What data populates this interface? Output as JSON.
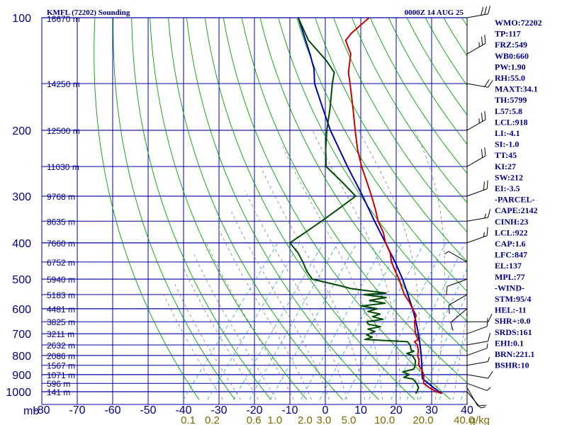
{
  "chart_data": {
    "type": "line",
    "title": "KMFL (72202) Sounding",
    "timestamp": "0000Z 14 AUG 25",
    "y_axis_label": "mb",
    "pressure_ticks": [
      "100",
      "200",
      "300",
      "400",
      "500",
      "600",
      "700",
      "800",
      "900",
      "1000"
    ],
    "temperature_ticks": [
      "-80",
      "-70",
      "-60",
      "-50",
      "-40",
      "-30",
      "-20",
      "-10",
      "0",
      "10",
      "20",
      "30",
      "40"
    ],
    "mixing_ratio_labels": [
      "0.1",
      "0.2",
      "0.6",
      "1.0",
      "2.0",
      "3.0",
      "5.0",
      "10.0",
      "20.0",
      "40.0",
      "g/kg"
    ],
    "height_labels": [
      {
        "p": 100,
        "text": "16670 m"
      },
      {
        "p": 150,
        "text": "14250 m"
      },
      {
        "p": 200,
        "text": "12500 m"
      },
      {
        "p": 250,
        "text": "11030 m"
      },
      {
        "p": 300,
        "text": "9768 m"
      },
      {
        "p": 350,
        "text": "8635 m"
      },
      {
        "p": 400,
        "text": "7660 m"
      },
      {
        "p": 450,
        "text": "6752 m"
      },
      {
        "p": 500,
        "text": "5940 m"
      },
      {
        "p": 550,
        "text": "5183 m"
      },
      {
        "p": 600,
        "text": "4481 m"
      },
      {
        "p": 650,
        "text": "3825 m"
      },
      {
        "p": 700,
        "text": "3211 m"
      },
      {
        "p": 750,
        "text": "2632 m"
      },
      {
        "p": 800,
        "text": "2086 m"
      },
      {
        "p": 850,
        "text": "1567 m"
      },
      {
        "p": 900,
        "text": "1071 m"
      },
      {
        "p": 950,
        "text": "596 m"
      },
      {
        "p": 1000,
        "text": "141 m"
      }
    ],
    "indices": [
      "WMO:72202",
      "TP:117",
      "FRZ:549",
      "WB0:660",
      "PW:1.90",
      "RH:55.0",
      "MAXT:34.1",
      "TH:5799",
      "L57:5.8",
      "LCL:918",
      "LI:-4.1",
      "SI:-1.0",
      "TT:45",
      "KI:27",
      "SW:212",
      "EI:-3.5",
      "-PARCEL-",
      "CAPE:2142",
      "CINH:23",
      "LCL:922",
      "CAP:1.6",
      "LFC:847",
      "EL:137",
      "MPL:77",
      "-WIND-",
      "STM:95/4",
      "HEL:-11",
      "SHR+:0.0",
      "SRDS:161",
      "EHI:0.1",
      "BRN:221.1",
      "BSHR:10"
    ],
    "series": [
      {
        "name": "Temperature",
        "color": "#cc0000",
        "points": [
          [
            1012,
            30.5
          ],
          [
            1000,
            28.5
          ],
          [
            975,
            25.5
          ],
          [
            950,
            23.0
          ],
          [
            925,
            22.0
          ],
          [
            900,
            21.0
          ],
          [
            875,
            19.5
          ],
          [
            850,
            17.5
          ],
          [
            825,
            16.5
          ],
          [
            800,
            15.0
          ],
          [
            775,
            14.0
          ],
          [
            750,
            12.5
          ],
          [
            735,
            11.0
          ],
          [
            725,
            11.5
          ],
          [
            700,
            9.5
          ],
          [
            675,
            8.0
          ],
          [
            650,
            6.5
          ],
          [
            625,
            5.5
          ],
          [
            600,
            3.0
          ],
          [
            575,
            0.5
          ],
          [
            550,
            -2.5
          ],
          [
            525,
            -5.0
          ],
          [
            500,
            -7.5
          ],
          [
            475,
            -10.5
          ],
          [
            450,
            -13.5
          ],
          [
            425,
            -16.0
          ],
          [
            400,
            -19.5
          ],
          [
            375,
            -22.5
          ],
          [
            350,
            -26.5
          ],
          [
            325,
            -30.0
          ],
          [
            300,
            -34.0
          ],
          [
            275,
            -38.5
          ],
          [
            250,
            -43.5
          ],
          [
            225,
            -48.5
          ],
          [
            200,
            -53.5
          ],
          [
            175,
            -59.0
          ],
          [
            150,
            -65.5
          ],
          [
            140,
            -68.5
          ],
          [
            125,
            -72.0
          ],
          [
            115,
            -76.5
          ],
          [
            110,
            -76.5
          ],
          [
            100,
            -75.0
          ]
        ]
      },
      {
        "name": "Dewpoint",
        "color": "#004a00",
        "points": [
          [
            1012,
            23.0
          ],
          [
            1000,
            23.0
          ],
          [
            975,
            22.5
          ],
          [
            950,
            21.0
          ],
          [
            925,
            19.0
          ],
          [
            915,
            16.0
          ],
          [
            900,
            17.0
          ],
          [
            885,
            14.5
          ],
          [
            870,
            17.0
          ],
          [
            850,
            16.5
          ],
          [
            825,
            15.5
          ],
          [
            800,
            13.5
          ],
          [
            790,
            11.5
          ],
          [
            780,
            13.0
          ],
          [
            775,
            12.0
          ],
          [
            750,
            10.5
          ],
          [
            735,
            9.0
          ],
          [
            725,
            -3.5
          ],
          [
            715,
            -2.0
          ],
          [
            705,
            -4.0
          ],
          [
            690,
            -2.5
          ],
          [
            680,
            -5.0
          ],
          [
            670,
            -2.0
          ],
          [
            660,
            -6.0
          ],
          [
            650,
            -7.0
          ],
          [
            640,
            -3.0
          ],
          [
            630,
            -6.5
          ],
          [
            620,
            -5.0
          ],
          [
            610,
            -9.0
          ],
          [
            600,
            -7.0
          ],
          [
            590,
            -12.0
          ],
          [
            580,
            -6.0
          ],
          [
            570,
            -11.0
          ],
          [
            560,
            -7.0
          ],
          [
            550,
            -14.0
          ],
          [
            545,
            -8.0
          ],
          [
            530,
            -19.0
          ],
          [
            520,
            -23.0
          ],
          [
            500,
            -32.0
          ],
          [
            475,
            -35.5
          ],
          [
            450,
            -38.5
          ],
          [
            425,
            -42.0
          ],
          [
            400,
            -46.5
          ],
          [
            375,
            -44.5
          ],
          [
            350,
            -42.5
          ],
          [
            325,
            -40.5
          ],
          [
            300,
            -38.5
          ],
          [
            275,
            -45.5
          ],
          [
            250,
            -53.5
          ],
          [
            225,
            -57.5
          ],
          [
            200,
            -61.5
          ],
          [
            175,
            -65.5
          ],
          [
            150,
            -70.5
          ],
          [
            140,
            -72.5
          ],
          [
            130,
            -77.5
          ],
          [
            115,
            -87.0
          ],
          [
            100,
            -95.0
          ]
        ]
      },
      {
        "name": "Parcel",
        "color": "#0000a8",
        "points": [
          [
            1012,
            30.5
          ],
          [
            975,
            26.7
          ],
          [
            950,
            24.3
          ],
          [
            922,
            21.5
          ],
          [
            900,
            20.6
          ],
          [
            850,
            18.4
          ],
          [
            800,
            16.0
          ],
          [
            750,
            13.3
          ],
          [
            700,
            10.3
          ],
          [
            650,
            6.9
          ],
          [
            600,
            3.0
          ],
          [
            550,
            -1.5
          ],
          [
            500,
            -6.5
          ],
          [
            450,
            -12.5
          ],
          [
            400,
            -19.5
          ],
          [
            350,
            -27.5
          ],
          [
            300,
            -36.5
          ],
          [
            250,
            -47.5
          ],
          [
            200,
            -60.5
          ],
          [
            175,
            -67.5
          ],
          [
            150,
            -75.5
          ],
          [
            137,
            -79.0
          ],
          [
            125,
            -83.5
          ],
          [
            100,
            -95.0
          ]
        ]
      }
    ],
    "wind_barbs": [
      {
        "p": 1000,
        "dir": 140,
        "spd": 5
      },
      {
        "p": 975,
        "dir": 150,
        "spd": 10
      },
      {
        "p": 950,
        "dir": 110,
        "spd": 5
      },
      {
        "p": 900,
        "dir": 100,
        "spd": 10
      },
      {
        "p": 850,
        "dir": 80,
        "spd": 5
      },
      {
        "p": 800,
        "dir": 70,
        "spd": 5
      },
      {
        "p": 750,
        "dir": 80,
        "spd": 10
      },
      {
        "p": 700,
        "dir": 70,
        "spd": 10
      },
      {
        "p": 650,
        "dir": 90,
        "spd": 10
      },
      {
        "p": 600,
        "dir": 230,
        "spd": 10
      },
      {
        "p": 550,
        "dir": 240,
        "spd": 10
      },
      {
        "p": 500,
        "dir": 250,
        "spd": 10
      },
      {
        "p": 450,
        "dir": 300,
        "spd": 5
      },
      {
        "p": 400,
        "dir": 70,
        "spd": 15
      },
      {
        "p": 350,
        "dir": 80,
        "spd": 15
      },
      {
        "p": 300,
        "dir": 70,
        "spd": 20
      },
      {
        "p": 250,
        "dir": 60,
        "spd": 20
      },
      {
        "p": 200,
        "dir": 60,
        "spd": 25
      },
      {
        "p": 150,
        "dir": 100,
        "spd": 20
      },
      {
        "p": 125,
        "dir": 60,
        "spd": 25
      },
      {
        "p": 100,
        "dir": 80,
        "spd": 30
      }
    ],
    "colors": {
      "grid": "#0000a8",
      "dry_adiabat": "#00a000",
      "moist_adiabat": "#808080",
      "mixing_ratio": "#3399dd",
      "label_text": "#000080",
      "mixing_label": "#7a6a00",
      "pressure_label": "#000080"
    }
  }
}
